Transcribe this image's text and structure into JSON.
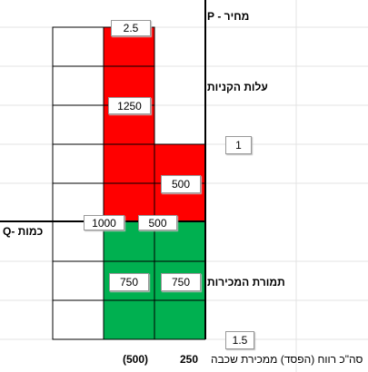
{
  "row_labels": {
    "price": "מחיר - P",
    "purchase_cost": "עלות הקניות",
    "sales_revenue": "תמורת המכירות",
    "quantity": "כמות -Q"
  },
  "cell_values": {
    "price": "2.5",
    "cost_total": "1250",
    "cost_layer": "500",
    "quantity_total": "1000",
    "quantity_layer": "500",
    "revenue_total": "750",
    "revenue_layer": "750",
    "low_price": "1",
    "high_price": "1.5"
  },
  "summary": {
    "label": "סה\"כ רווח (הפסד) ממכירת שכבה",
    "loss": "(500)",
    "profit": "250"
  }
}
